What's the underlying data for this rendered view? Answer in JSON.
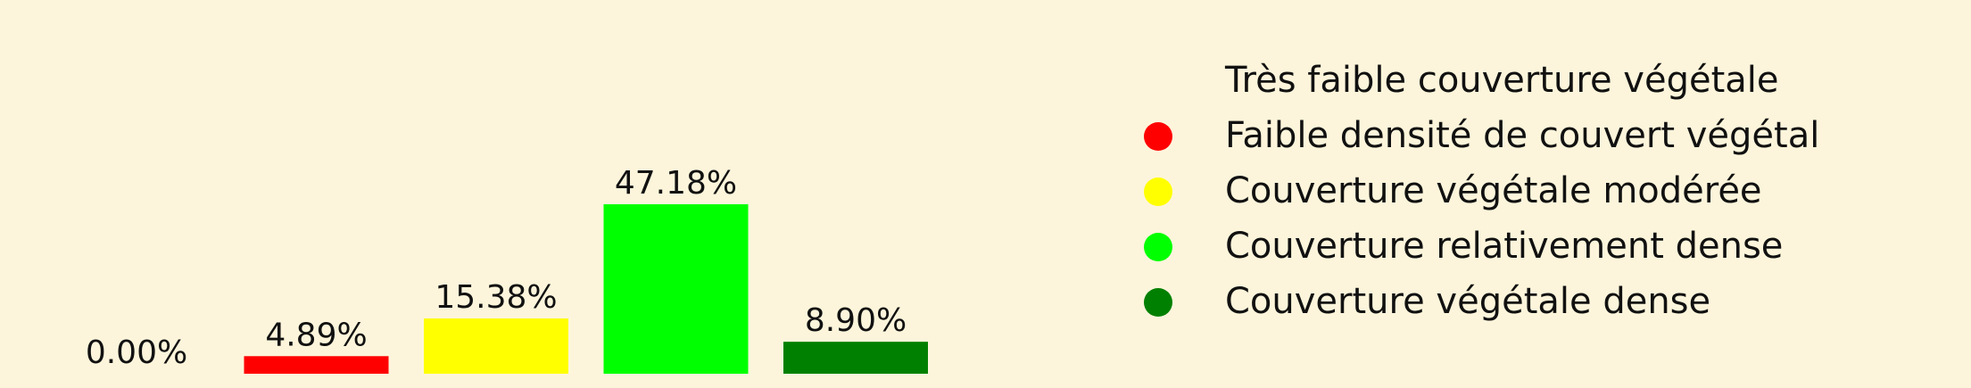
{
  "chart_data": {
    "type": "bar",
    "categories": [
      "Très faible couverture végétale",
      "Faible densité de couvert végétal",
      "Couverture végétale modérée",
      "Couverture relativement dense",
      "Couverture végétale dense"
    ],
    "values": [
      0.0,
      4.89,
      15.38,
      47.18,
      8.9
    ],
    "value_labels": [
      "0.00%",
      "4.89%",
      "15.38%",
      "47.18%",
      "8.90%"
    ],
    "colors": [
      "#fdf5db",
      "#ff0000",
      "#ffff00",
      "#00ff00",
      "#008000"
    ],
    "ylim": [
      0,
      47.18
    ],
    "grid": false,
    "axes_visible": false,
    "legend_position": "right",
    "title": "",
    "xlabel": "",
    "ylabel": ""
  },
  "legend": {
    "items": [
      {
        "label": "Très faible couverture végétale",
        "color": "#fdf5db"
      },
      {
        "label": "Faible densité de couvert végétal",
        "color": "#ff0000"
      },
      {
        "label": "Couverture végétale modérée",
        "color": "#ffff00"
      },
      {
        "label": "Couverture relativement dense",
        "color": "#00ff00"
      },
      {
        "label": "Couverture végétale dense",
        "color": "#008000"
      }
    ]
  },
  "background_color": "#fdf5db"
}
